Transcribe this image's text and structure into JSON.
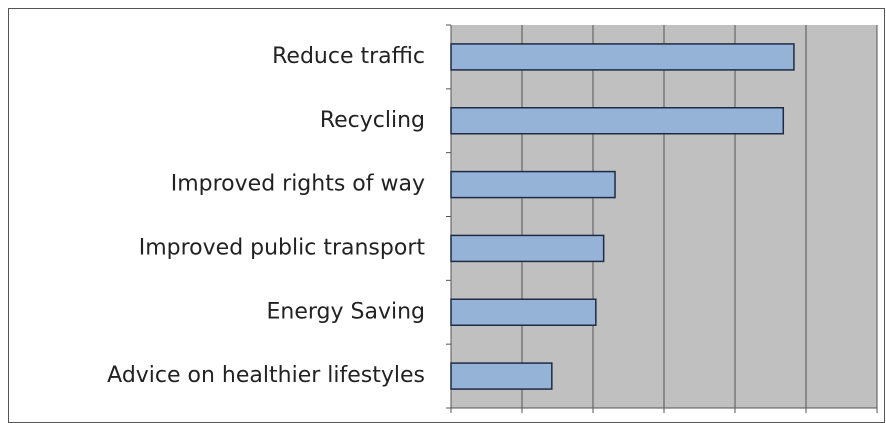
{
  "chart_data": {
    "type": "barh",
    "categories": [
      "Reduce traffic",
      "Recycling",
      "Improved rights of way",
      "Improved public transport",
      "Energy Saving",
      "Advice on healthier lifestyles"
    ],
    "values": [
      4.83,
      4.68,
      2.31,
      2.15,
      2.04,
      1.42
    ],
    "color": "#95b3d7",
    "xlim": [
      0,
      6
    ],
    "xticks": [
      0,
      1,
      2,
      3,
      4,
      5,
      6
    ],
    "grid": true
  }
}
